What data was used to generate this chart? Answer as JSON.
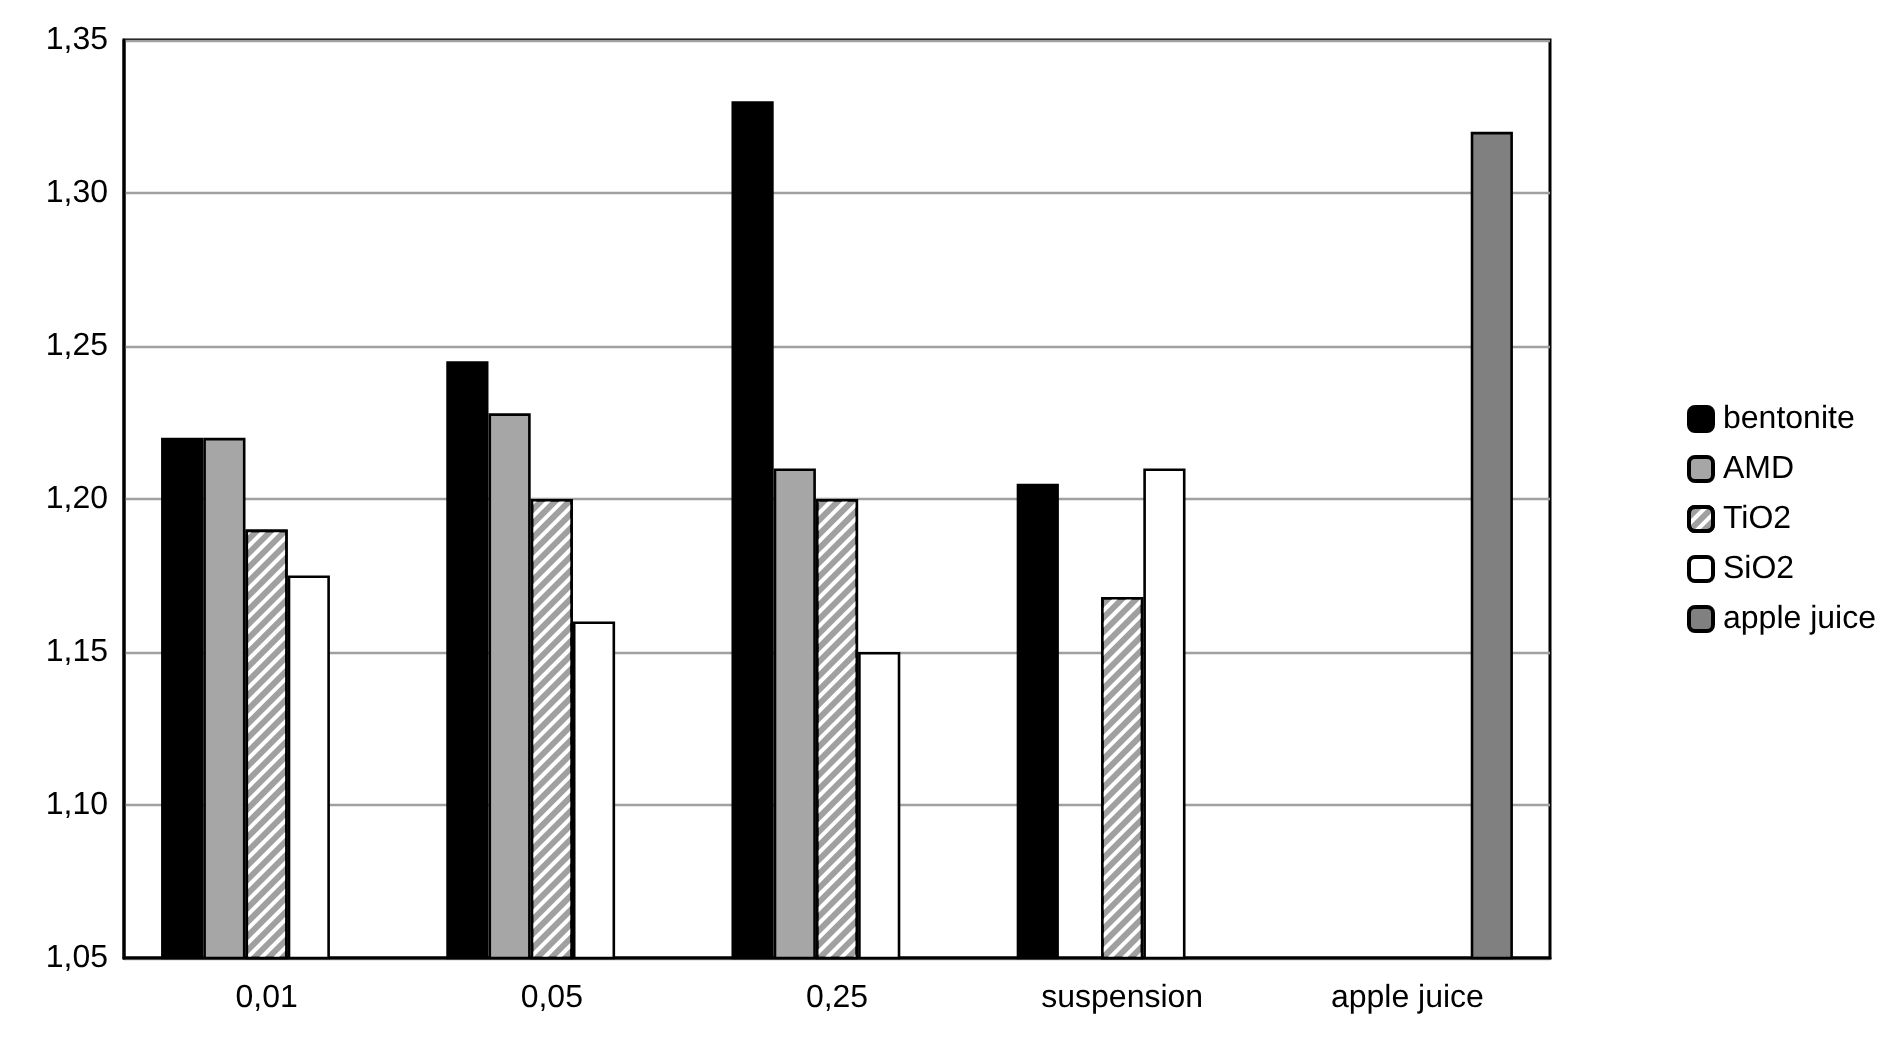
{
  "chart_data": {
    "type": "bar",
    "categories": [
      "0,01",
      "0,05",
      "0,25",
      "suspension",
      "apple juice"
    ],
    "series": [
      {
        "name": "bentonite",
        "color": "#000000",
        "values": [
          1.22,
          1.245,
          1.33,
          1.205,
          null
        ]
      },
      {
        "name": "AMD",
        "color": "#a6a6a6",
        "values": [
          1.22,
          1.228,
          1.21,
          null,
          null
        ]
      },
      {
        "name": "TiO2",
        "color": "#a0a0a0",
        "values": [
          1.19,
          1.2,
          1.2,
          1.168,
          null
        ]
      },
      {
        "name": "SiO2",
        "color": "#ffffff",
        "values": [
          1.175,
          1.16,
          1.15,
          1.21,
          null
        ]
      },
      {
        "name": "apple juice",
        "color": "#808080",
        "values": [
          null,
          null,
          null,
          null,
          1.32
        ]
      }
    ],
    "ylim": [
      1.05,
      1.35
    ],
    "yticks": [
      {
        "value": 1.05,
        "label": "1,05"
      },
      {
        "value": 1.1,
        "label": "1,10"
      },
      {
        "value": 1.15,
        "label": "1,15"
      },
      {
        "value": 1.2,
        "label": "1,20"
      },
      {
        "value": 1.25,
        "label": "1,25"
      },
      {
        "value": 1.3,
        "label": "1,30"
      },
      {
        "value": 1.35,
        "label": "1,35"
      }
    ],
    "grid": "y",
    "legend": "right"
  }
}
